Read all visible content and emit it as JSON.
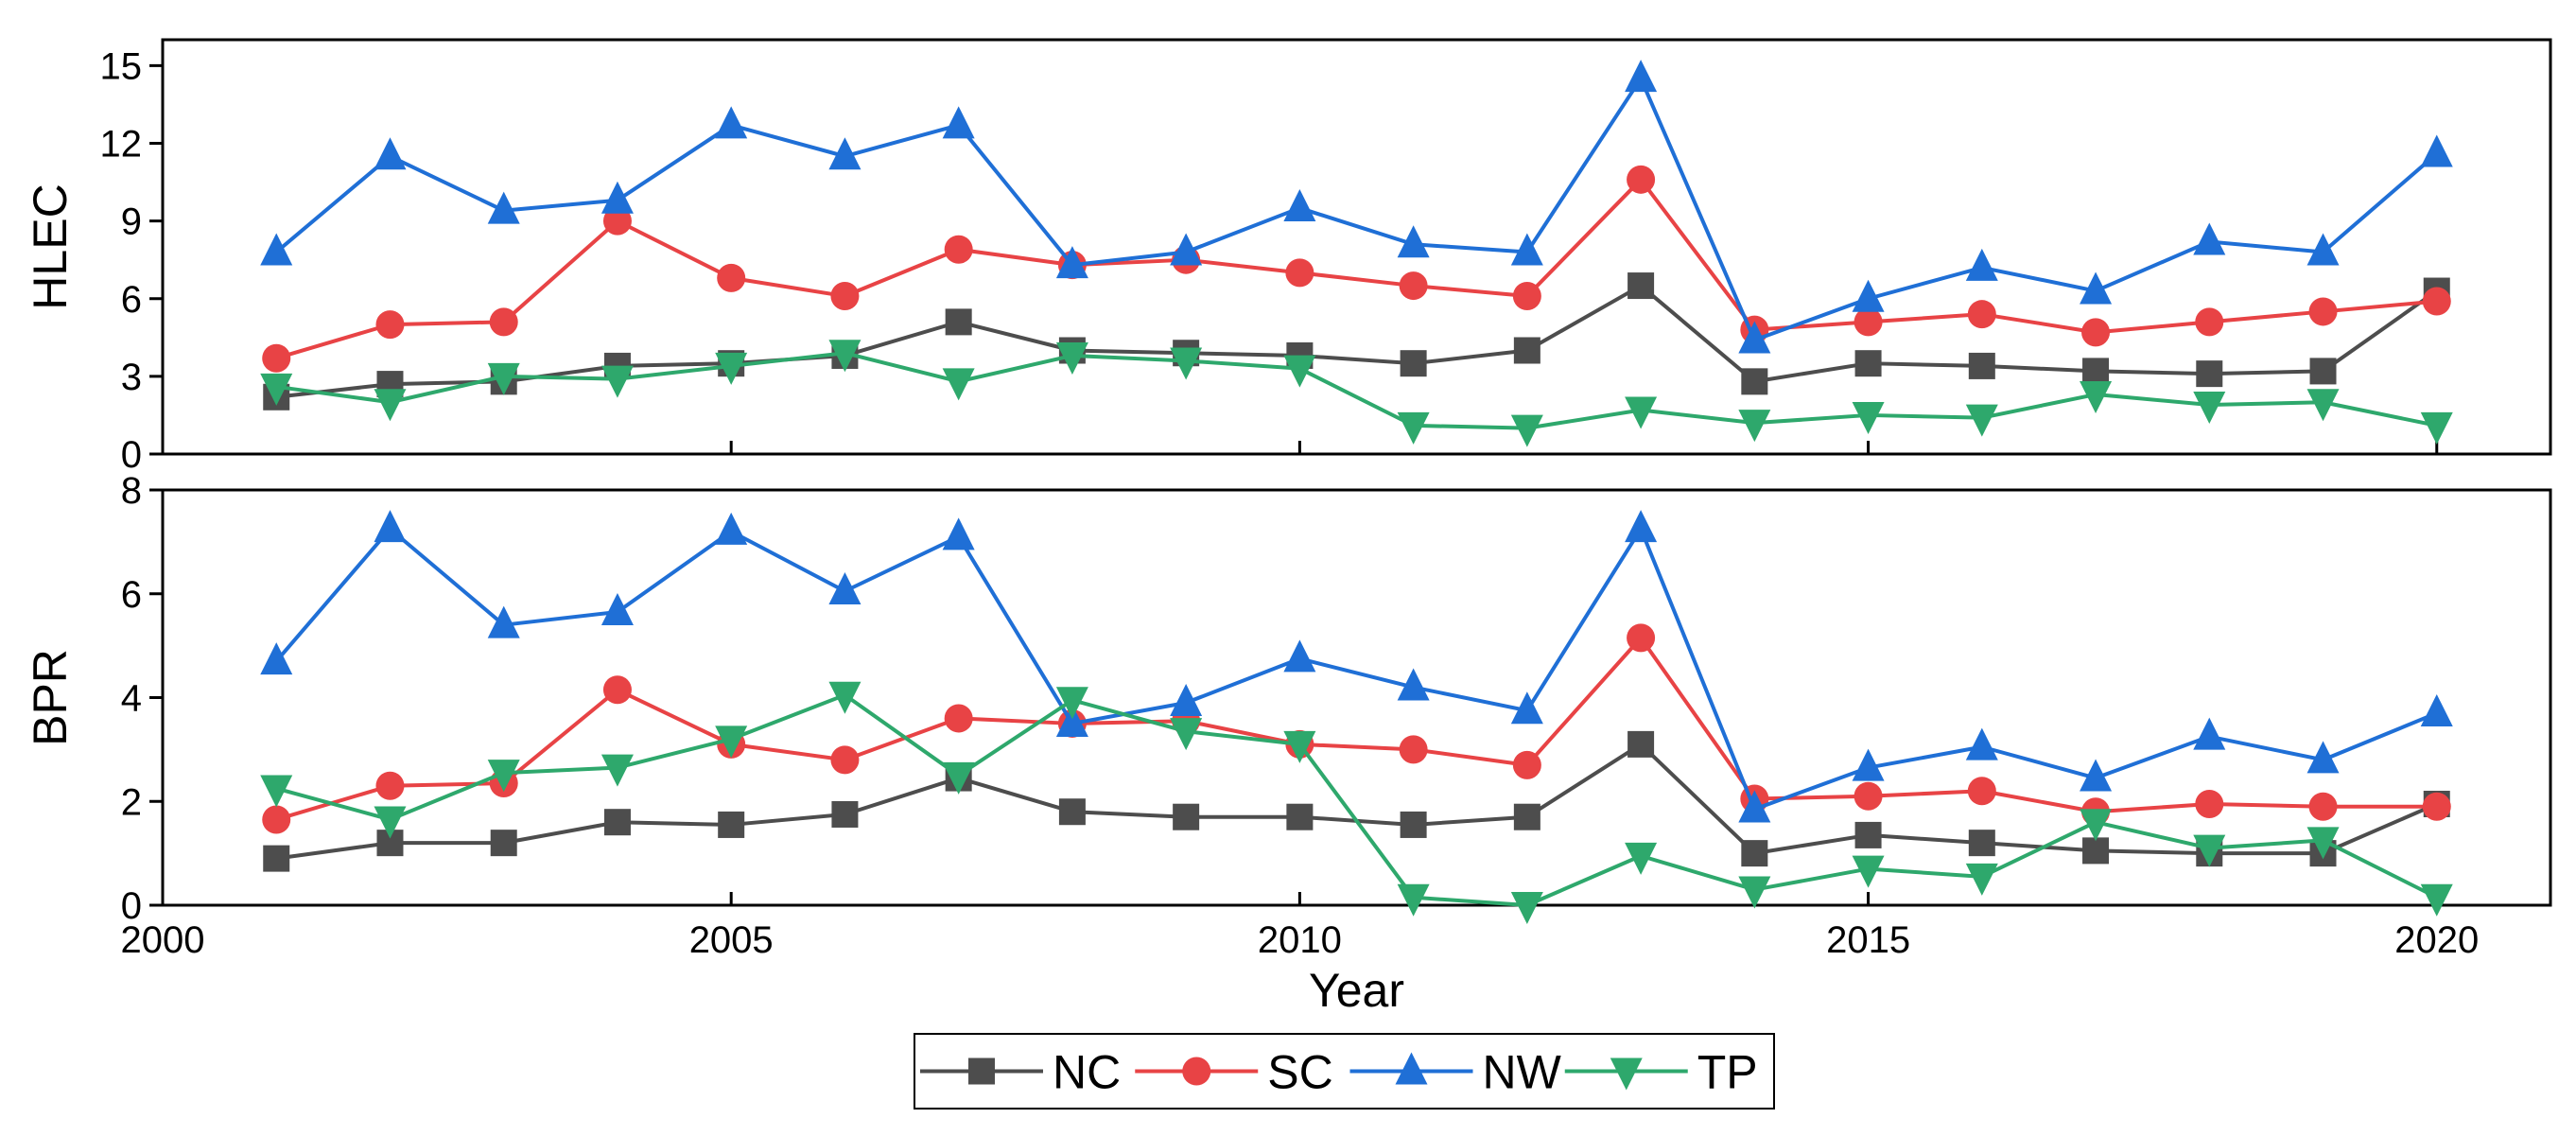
{
  "chart_data": {
    "type": "line",
    "x": [
      2001,
      2002,
      2003,
      2004,
      2005,
      2006,
      2007,
      2008,
      2009,
      2010,
      2011,
      2012,
      2013,
      2014,
      2015,
      2016,
      2017,
      2018,
      2019,
      2020
    ],
    "xlabel": "Year",
    "xlim": [
      2000,
      2021
    ],
    "xticks": [
      2000,
      2005,
      2010,
      2015,
      2020
    ],
    "legend": {
      "position": "bottom-center",
      "entries": [
        "NC",
        "SC",
        "NW",
        "TP"
      ]
    },
    "panels": [
      {
        "ylabel": "HLEC",
        "ylim": [
          0,
          16
        ],
        "yticks": [
          0,
          3,
          6,
          9,
          12,
          15
        ],
        "series": [
          {
            "name": "NC",
            "color": "#4d4d4d",
            "marker": "square",
            "values": [
              2.2,
              2.7,
              2.8,
              3.4,
              3.5,
              3.8,
              5.1,
              4.0,
              3.9,
              3.8,
              3.5,
              4.0,
              6.5,
              2.8,
              3.5,
              3.4,
              3.2,
              3.1,
              3.2,
              6.3
            ]
          },
          {
            "name": "SC",
            "color": "#e84345",
            "marker": "circle",
            "values": [
              3.7,
              5.0,
              5.1,
              9.0,
              6.8,
              6.1,
              7.9,
              7.3,
              7.5,
              7.0,
              6.5,
              6.1,
              10.6,
              4.8,
              5.1,
              5.4,
              4.7,
              5.1,
              5.5,
              5.9
            ]
          },
          {
            "name": "NW",
            "color": "#1f6fd6",
            "marker": "triangle-up",
            "values": [
              7.8,
              11.5,
              9.4,
              9.8,
              12.7,
              11.5,
              12.7,
              7.3,
              7.8,
              9.5,
              8.1,
              7.8,
              14.5,
              4.4,
              6.0,
              7.2,
              6.3,
              8.2,
              7.8,
              11.6
            ]
          },
          {
            "name": "TP",
            "color": "#2ea86c",
            "marker": "triangle-down",
            "values": [
              2.6,
              2.0,
              3.0,
              2.9,
              3.4,
              3.9,
              2.8,
              3.8,
              3.6,
              3.3,
              1.1,
              1.0,
              1.7,
              1.2,
              1.5,
              1.4,
              2.3,
              1.9,
              2.0,
              1.1
            ]
          }
        ]
      },
      {
        "ylabel": "BPR",
        "ylim": [
          0,
          8
        ],
        "yticks": [
          0,
          2,
          4,
          6,
          8
        ],
        "series": [
          {
            "name": "NC",
            "color": "#4d4d4d",
            "marker": "square",
            "values": [
              0.9,
              1.2,
              1.2,
              1.6,
              1.55,
              1.75,
              2.45,
              1.8,
              1.7,
              1.7,
              1.55,
              1.7,
              3.1,
              1.0,
              1.35,
              1.2,
              1.05,
              1.0,
              1.0,
              1.95
            ]
          },
          {
            "name": "SC",
            "color": "#e84345",
            "marker": "circle",
            "values": [
              1.65,
              2.3,
              2.35,
              4.15,
              3.1,
              2.8,
              3.6,
              3.5,
              3.55,
              3.1,
              3.0,
              2.7,
              5.15,
              2.05,
              2.1,
              2.2,
              1.8,
              1.95,
              1.9,
              1.9
            ]
          },
          {
            "name": "NW",
            "color": "#1f6fd6",
            "marker": "triangle-up",
            "values": [
              4.7,
              7.25,
              5.4,
              5.65,
              7.2,
              6.05,
              7.1,
              3.5,
              3.9,
              4.75,
              4.2,
              3.75,
              7.25,
              1.85,
              2.65,
              3.05,
              2.45,
              3.25,
              2.8,
              3.7
            ]
          },
          {
            "name": "TP",
            "color": "#2ea86c",
            "marker": "triangle-down",
            "values": [
              2.25,
              1.65,
              2.55,
              2.65,
              3.2,
              4.05,
              2.5,
              3.95,
              3.35,
              3.1,
              0.15,
              0.0,
              0.95,
              0.3,
              0.7,
              0.55,
              1.6,
              1.1,
              1.25,
              0.15
            ]
          }
        ]
      }
    ]
  }
}
